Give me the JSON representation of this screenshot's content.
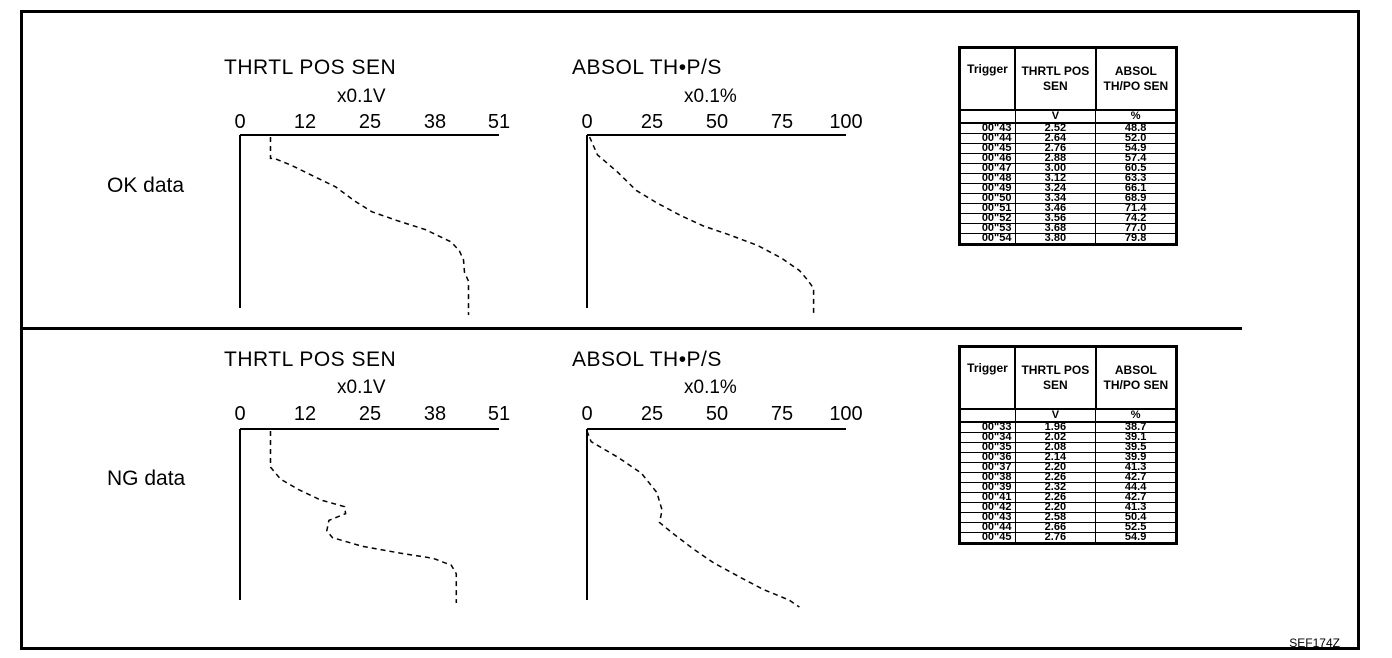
{
  "figure_id": "SEF174Z",
  "panels": [
    {
      "label": "OK data",
      "thrtl_plot": {
        "title": "THRTL POS SEN",
        "unit": "x0.1V",
        "ticks": [
          "0",
          "12",
          "25",
          "38",
          "51"
        ],
        "axis_max": 51,
        "trace": [
          [
            0,
            6.0
          ],
          [
            0.12,
            6.0
          ],
          [
            0.12,
            6.8
          ],
          [
            0.16,
            10.2
          ],
          [
            0.22,
            14.5
          ],
          [
            0.28,
            18.8
          ],
          [
            0.36,
            22.6
          ],
          [
            0.42,
            26.0
          ],
          [
            0.47,
            31.0
          ],
          [
            0.52,
            36.5
          ],
          [
            0.59,
            41.6
          ],
          [
            0.64,
            43.2
          ],
          [
            0.69,
            44.0
          ],
          [
            0.76,
            44.2
          ],
          [
            0.81,
            45.0
          ],
          [
            1.0,
            45.0
          ]
        ]
      },
      "absol_plot": {
        "title": "ABSOL TH•P/S",
        "unit": "x0.1%",
        "ticks": [
          "0",
          "25",
          "50",
          "75",
          "100"
        ],
        "axis_max": 100,
        "trace": [
          [
            0,
            1.0
          ],
          [
            0.1,
            4.0
          ],
          [
            0.2,
            12.0
          ],
          [
            0.3,
            19.0
          ],
          [
            0.37,
            27.0
          ],
          [
            0.44,
            36.0
          ],
          [
            0.5,
            45.0
          ],
          [
            0.55,
            55.0
          ],
          [
            0.61,
            66.0
          ],
          [
            0.68,
            75.0
          ],
          [
            0.75,
            82.0
          ],
          [
            0.8,
            85.0
          ],
          [
            0.85,
            87.5
          ],
          [
            1.0,
            87.5
          ]
        ]
      },
      "table": {
        "headers": [
          "Trigger",
          "THRTL POS SEN",
          "ABSOL TH/PO SEN"
        ],
        "units": [
          "",
          "V",
          "%"
        ],
        "rows": [
          [
            "00\"43",
            "2.52",
            "48.8"
          ],
          [
            "00\"44",
            "2.64",
            "52.0"
          ],
          [
            "00\"45",
            "2.76",
            "54.9"
          ],
          [
            "00\"46",
            "2.88",
            "57.4"
          ],
          [
            "00\"47",
            "3.00",
            "60.5"
          ],
          [
            "00\"48",
            "3.12",
            "63.3"
          ],
          [
            "00\"49",
            "3.24",
            "66.1"
          ],
          [
            "00\"50",
            "3.34",
            "68.9"
          ],
          [
            "00\"51",
            "3.46",
            "71.4"
          ],
          [
            "00\"52",
            "3.56",
            "74.2"
          ],
          [
            "00\"53",
            "3.68",
            "77.0"
          ],
          [
            "00\"54",
            "3.80",
            "79.8"
          ]
        ]
      }
    },
    {
      "label": "NG data",
      "thrtl_plot": {
        "title": "THRTL POS SEN",
        "unit": "x0.1V",
        "ticks": [
          "0",
          "12",
          "25",
          "38",
          "51"
        ],
        "axis_max": 51,
        "trace": [
          [
            0,
            6.0
          ],
          [
            0.21,
            6.0
          ],
          [
            0.28,
            8.0
          ],
          [
            0.34,
            11.5
          ],
          [
            0.4,
            15.8
          ],
          [
            0.44,
            20.6
          ],
          [
            0.48,
            20.8
          ],
          [
            0.52,
            17.5
          ],
          [
            0.58,
            17.1
          ],
          [
            0.62,
            18.2
          ],
          [
            0.67,
            24.0
          ],
          [
            0.71,
            31.5
          ],
          [
            0.74,
            38.0
          ],
          [
            0.78,
            41.6
          ],
          [
            0.83,
            42.6
          ],
          [
            1.0,
            42.6
          ]
        ]
      },
      "absol_plot": {
        "title": "ABSOL TH•P/S",
        "unit": "x0.1%",
        "ticks": [
          "0",
          "25",
          "50",
          "75",
          "100"
        ],
        "axis_max": 100,
        "trace": [
          [
            0,
            0.0
          ],
          [
            0.06,
            1.6
          ],
          [
            0.15,
            12.0
          ],
          [
            0.24,
            21.0
          ],
          [
            0.35,
            27.0
          ],
          [
            0.45,
            29.0
          ],
          [
            0.52,
            28.0
          ],
          [
            0.58,
            33.0
          ],
          [
            0.67,
            41.0
          ],
          [
            0.75,
            49.0
          ],
          [
            0.83,
            59.0
          ],
          [
            0.9,
            68.0
          ],
          [
            0.96,
            78.0
          ],
          [
            1.0,
            82.0
          ]
        ]
      },
      "table": {
        "headers": [
          "Trigger",
          "THRTL POS SEN",
          "ABSOL TH/PO SEN"
        ],
        "units": [
          "",
          "V",
          "%"
        ],
        "rows": [
          [
            "00\"33",
            "1.96",
            "38.7"
          ],
          [
            "00\"34",
            "2.02",
            "39.1"
          ],
          [
            "00\"35",
            "2.08",
            "39.5"
          ],
          [
            "00\"36",
            "2.14",
            "39.9"
          ],
          [
            "00\"37",
            "2.20",
            "41.3"
          ],
          [
            "00\"38",
            "2.26",
            "42.7"
          ],
          [
            "00\"39",
            "2.32",
            "44.4"
          ],
          [
            "00\"41",
            "2.26",
            "42.7"
          ],
          [
            "00\"42",
            "2.20",
            "41.3"
          ],
          [
            "00\"43",
            "2.58",
            "50.4"
          ],
          [
            "00\"44",
            "2.66",
            "52.5"
          ],
          [
            "00\"45",
            "2.76",
            "54.9"
          ]
        ]
      }
    }
  ]
}
